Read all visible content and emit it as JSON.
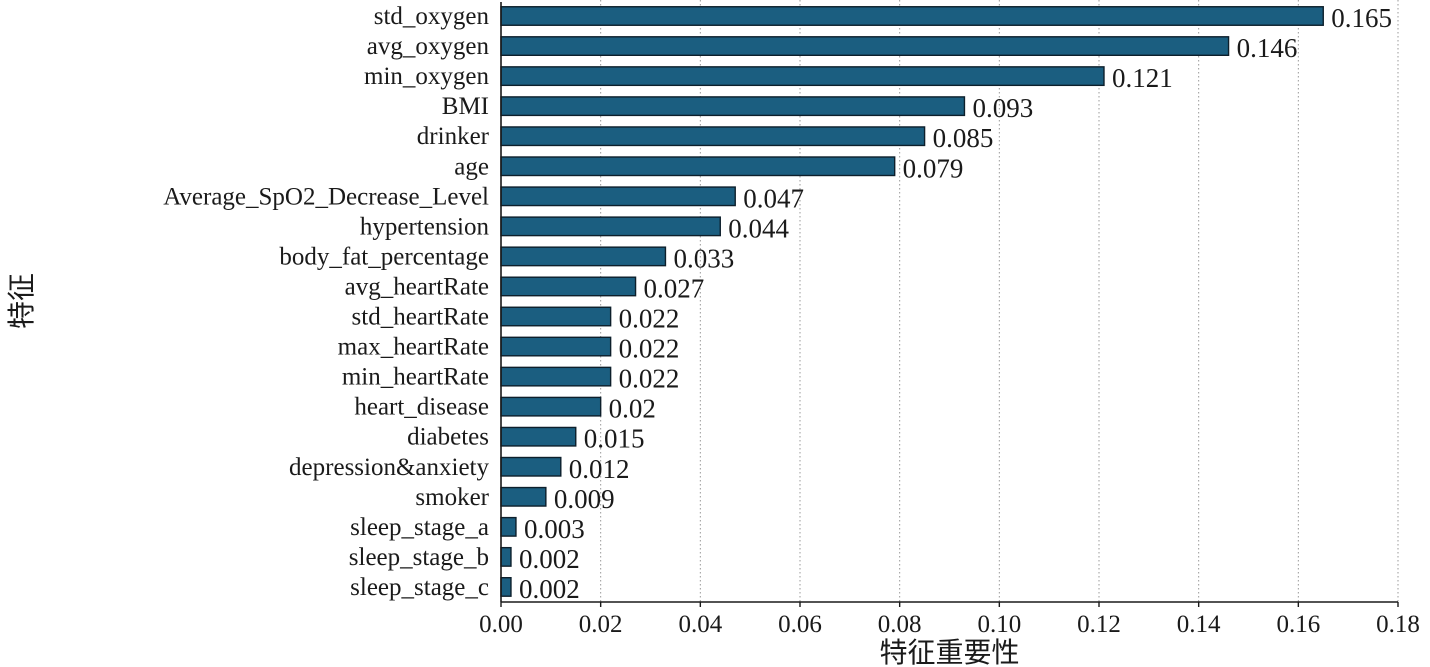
{
  "chart_data": {
    "type": "bar",
    "orientation": "horizontal",
    "categories": [
      "std_oxygen",
      "avg_oxygen",
      "min_oxygen",
      "BMI",
      "drinker",
      "age",
      "Average_SpO2_Decrease_Level",
      "hypertension",
      "body_fat_percentage",
      "avg_heartRate",
      "std_heartRate",
      "max_heartRate",
      "min_heartRate",
      "heart_disease",
      "diabetes",
      "depression&anxiety",
      "smoker",
      "sleep_stage_a",
      "sleep_stage_b",
      "sleep_stage_c"
    ],
    "values": [
      0.165,
      0.146,
      0.121,
      0.093,
      0.085,
      0.079,
      0.047,
      0.044,
      0.033,
      0.027,
      0.022,
      0.022,
      0.022,
      0.02,
      0.015,
      0.012,
      0.009,
      0.003,
      0.002,
      0.002
    ],
    "value_labels": [
      "0.165",
      "0.146",
      "0.121",
      "0.093",
      "0.085",
      "0.079",
      "0.047",
      "0.044",
      "0.033",
      "0.027",
      "0.022",
      "0.022",
      "0.022",
      "0.02",
      "0.015",
      "0.012",
      "0.009",
      "0.003",
      "0.002",
      "0.002"
    ],
    "xlabel": "特征重要性",
    "ylabel": "特征",
    "xlim": [
      0,
      0.18
    ],
    "xticks": [
      0,
      0.02,
      0.04,
      0.06,
      0.08,
      0.1,
      0.12,
      0.14,
      0.16,
      0.18
    ],
    "xtick_labels": [
      "0.00",
      "0.02",
      "0.04",
      "0.06",
      "0.08",
      "0.10",
      "0.12",
      "0.14",
      "0.16",
      "0.18"
    ],
    "grid": "vertical dotted",
    "colors": {
      "bar_fill": "#1b5e80",
      "bar_edge": "#0d1f2b",
      "grid": "#9a9a9a",
      "axis": "#1a1a1a"
    }
  }
}
